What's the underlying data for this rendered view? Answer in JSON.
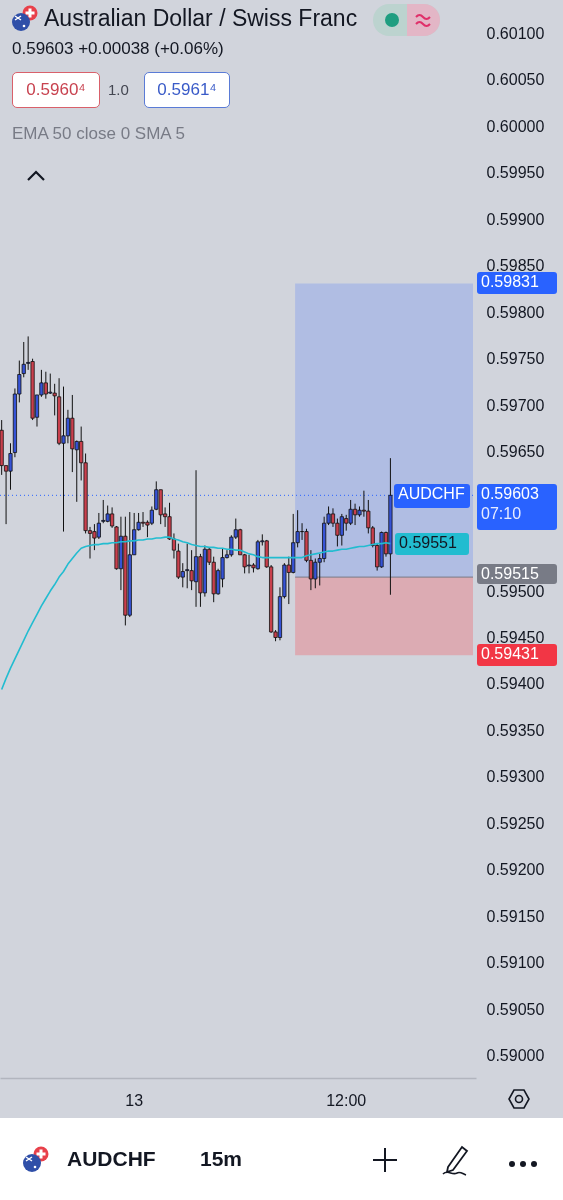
{
  "chart_data": {
    "type": "candlestick",
    "title": "Australian Dollar / Swiss Franc",
    "subtitle": "0.59603 +0.00038 (+0.06%)",
    "categories": [
      null,
      null,
      null,
      null,
      null,
      null,
      null,
      null,
      null,
      null,
      null,
      null,
      null,
      null,
      null,
      null,
      null,
      null,
      null,
      null,
      null,
      null,
      null,
      null,
      null,
      null,
      null,
      null,
      null,
      null,
      "13",
      null,
      null,
      null,
      null,
      null,
      null,
      null,
      null,
      null,
      null,
      null,
      null,
      null,
      null,
      null,
      null,
      null,
      null,
      null,
      null,
      null,
      null,
      null,
      null,
      null,
      null,
      null,
      null,
      null,
      null,
      null,
      null,
      null,
      null,
      null,
      null,
      null,
      null,
      null,
      null,
      null,
      null,
      null,
      null,
      null,
      null,
      null,
      "12:00",
      null,
      null,
      null,
      null,
      null,
      null,
      null,
      null,
      null,
      null
    ],
    "ohlc": [
      [
        0.59673,
        0.59684,
        0.59625,
        0.59635
      ],
      [
        0.59635,
        0.59635,
        0.59572,
        0.59629
      ],
      [
        0.59629,
        0.59659,
        0.59609,
        0.59648
      ],
      [
        0.59649,
        0.59718,
        0.59644,
        0.59712
      ],
      [
        0.59712,
        0.59748,
        0.59703,
        0.59733
      ],
      [
        0.59734,
        0.59768,
        0.5973,
        0.59744
      ],
      [
        0.59745,
        0.59774,
        0.59738,
        0.59746
      ],
      [
        0.59747,
        0.5975,
        0.59684,
        0.59686
      ],
      [
        0.59687,
        0.59711,
        0.59677,
        0.59711
      ],
      [
        0.59711,
        0.59738,
        0.59709,
        0.59724
      ],
      [
        0.59724,
        0.59736,
        0.59707,
        0.59712
      ],
      [
        0.59713,
        0.59734,
        0.59712,
        0.59714
      ],
      [
        0.59713,
        0.59723,
        0.59689,
        0.5971
      ],
      [
        0.59709,
        0.59729,
        0.59657,
        0.59659
      ],
      [
        0.59659,
        0.5972,
        0.59564,
        0.59667
      ],
      [
        0.59667,
        0.59695,
        0.59659,
        0.59686
      ],
      [
        0.59686,
        0.59711,
        0.59628,
        0.59653
      ],
      [
        0.59652,
        0.59662,
        0.59596,
        0.59661
      ],
      [
        0.59661,
        0.59677,
        0.59619,
        0.59638
      ],
      [
        0.59638,
        0.59648,
        0.59562,
        0.59565
      ],
      [
        0.59565,
        0.59569,
        0.59535,
        0.59562
      ],
      [
        0.59564,
        0.59572,
        0.59544,
        0.59557
      ],
      [
        0.59558,
        0.59584,
        0.59556,
        0.59573
      ],
      [
        0.59575,
        0.59598,
        0.59573,
        0.59576
      ],
      [
        0.59575,
        0.59592,
        0.59574,
        0.59583
      ],
      [
        0.59583,
        0.5959,
        0.59568,
        0.5957
      ],
      [
        0.59569,
        0.5957,
        0.59523,
        0.59524
      ],
      [
        0.59524,
        0.5958,
        0.59501,
        0.59559
      ],
      [
        0.59559,
        0.5958,
        0.59463,
        0.59474
      ],
      [
        0.59474,
        0.59585,
        0.59472,
        0.59539
      ],
      [
        0.59539,
        0.59584,
        0.59539,
        0.59566
      ],
      [
        0.59566,
        0.59584,
        0.59565,
        0.59574
      ],
      [
        0.59574,
        0.59585,
        0.59569,
        0.59573
      ],
      [
        0.59574,
        0.59576,
        0.59558,
        0.59571
      ],
      [
        0.59573,
        0.59591,
        0.59571,
        0.59587
      ],
      [
        0.59588,
        0.59618,
        0.59587,
        0.59609
      ],
      [
        0.59609,
        0.59609,
        0.59572,
        0.59582
      ],
      [
        0.59583,
        0.5959,
        0.59569,
        0.5958
      ],
      [
        0.5958,
        0.59595,
        0.59555,
        0.59556
      ],
      [
        0.59556,
        0.59562,
        0.59535,
        0.59544
      ],
      [
        0.59543,
        0.59551,
        0.59513,
        0.59515
      ],
      [
        0.59515,
        0.5953,
        0.59504,
        0.59521
      ],
      [
        0.59522,
        0.59551,
        0.59503,
        0.59523
      ],
      [
        0.59522,
        0.59544,
        0.59501,
        0.59511
      ],
      [
        0.5951,
        0.5963,
        0.59483,
        0.59537
      ],
      [
        0.59537,
        0.5954,
        0.59483,
        0.59498
      ],
      [
        0.59498,
        0.59549,
        0.59494,
        0.59545
      ],
      [
        0.59545,
        0.59547,
        0.59528,
        0.59531
      ],
      [
        0.59531,
        0.59537,
        0.59488,
        0.59497
      ],
      [
        0.59497,
        0.59524,
        0.59496,
        0.59522
      ],
      [
        0.59513,
        0.59546,
        0.59504,
        0.59536
      ],
      [
        0.59536,
        0.59544,
        0.59535,
        0.59539
      ],
      [
        0.59539,
        0.5956,
        0.59537,
        0.59558
      ],
      [
        0.59558,
        0.59578,
        0.59556,
        0.59566
      ],
      [
        0.59566,
        0.59567,
        0.59539,
        0.59539
      ],
      [
        0.59539,
        0.5954,
        0.59519,
        0.59526
      ],
      [
        0.59527,
        0.59539,
        0.59519,
        0.59528
      ],
      [
        0.59528,
        0.5953,
        0.5952,
        0.59525
      ],
      [
        0.59524,
        0.59555,
        0.59523,
        0.59553
      ],
      [
        0.59553,
        0.59561,
        0.59549,
        0.59554
      ],
      [
        0.59554,
        0.59555,
        0.59525,
        0.59526
      ],
      [
        0.59526,
        0.59528,
        0.59455,
        0.59456
      ],
      [
        0.59456,
        0.59458,
        0.59446,
        0.5945
      ],
      [
        0.5945,
        0.59504,
        0.59447,
        0.59494
      ],
      [
        0.59494,
        0.5953,
        0.59492,
        0.59528
      ],
      [
        0.59528,
        0.59537,
        0.59486,
        0.5952
      ],
      [
        0.5952,
        0.59583,
        0.59519,
        0.59552
      ],
      [
        0.59552,
        0.59587,
        0.59547,
        0.59564
      ],
      [
        0.59564,
        0.59573,
        0.59555,
        0.59564
      ],
      [
        0.59564,
        0.59567,
        0.59531,
        0.59533
      ],
      [
        0.59533,
        0.59544,
        0.59501,
        0.59513
      ],
      [
        0.59513,
        0.59535,
        0.59503,
        0.59531
      ],
      [
        0.59531,
        0.5954,
        0.59506,
        0.59535
      ],
      [
        0.59535,
        0.5958,
        0.59531,
        0.59573
      ],
      [
        0.59573,
        0.59591,
        0.59571,
        0.59583
      ],
      [
        0.59583,
        0.59589,
        0.59569,
        0.59573
      ],
      [
        0.59573,
        0.59578,
        0.59548,
        0.5956
      ],
      [
        0.5956,
        0.59583,
        0.59549,
        0.5958
      ],
      [
        0.59578,
        0.59582,
        0.59565,
        0.59573
      ],
      [
        0.59573,
        0.59598,
        0.59571,
        0.59588
      ],
      [
        0.59588,
        0.59594,
        0.59571,
        0.59582
      ],
      [
        0.59582,
        0.59591,
        0.5958,
        0.59587
      ],
      [
        0.59587,
        0.59608,
        0.5958,
        0.59586
      ],
      [
        0.59586,
        0.59598,
        0.59562,
        0.59568
      ],
      [
        0.59568,
        0.5957,
        0.59547,
        0.59549
      ],
      [
        0.59549,
        0.59551,
        0.59522,
        0.59526
      ],
      [
        0.59526,
        0.59564,
        0.59525,
        0.59563
      ],
      [
        0.59563,
        0.59564,
        0.59537,
        0.5954
      ],
      [
        0.5954,
        0.59643,
        0.59496,
        0.59603
      ]
    ],
    "series": [
      {
        "type": "line",
        "color": "#22bcd0",
        "values": [
          0.59394,
          0.59406,
          0.59417,
          0.59427,
          0.59437,
          0.59447,
          0.59457,
          0.59466,
          0.59475,
          0.59484,
          0.59492,
          0.595,
          0.59507,
          0.59515,
          0.59521,
          0.59529,
          0.59535,
          0.59541,
          0.59546,
          0.59548,
          0.59549,
          0.5955,
          0.5955,
          0.59551,
          0.59551,
          0.59552,
          0.59552,
          0.59553,
          0.59553,
          0.59554,
          0.59554,
          0.59555,
          0.59555,
          0.59556,
          0.59556,
          0.59557,
          0.59557,
          0.59558,
          0.59558,
          0.59556,
          0.59555,
          0.59553,
          0.59552,
          0.5955,
          0.59549,
          0.59548,
          0.59548,
          0.59547,
          0.59547,
          0.59546,
          0.59546,
          0.59545,
          0.59545,
          0.59544,
          0.59544,
          0.59542,
          0.5954,
          0.59539,
          0.59537,
          0.59536,
          0.59536,
          0.59536,
          0.59536,
          0.59536,
          0.59536,
          0.59536,
          0.59536,
          0.59536,
          0.59536,
          0.59538,
          0.59539,
          0.5954,
          0.59541,
          0.59542,
          0.59543,
          0.59543,
          0.59544,
          0.59545,
          0.59545,
          0.59546,
          0.59547,
          0.59548,
          0.59548,
          0.59549,
          0.5955,
          0.59551,
          0.59551,
          0.59552,
          0.59551
        ],
        "value_labels": [
          null,
          null,
          null,
          null,
          null,
          null,
          null,
          null,
          null,
          null,
          null,
          null,
          null,
          null,
          null,
          null,
          null,
          null,
          null,
          null,
          null,
          null,
          null,
          null,
          null,
          null,
          null,
          null,
          null,
          null,
          null,
          null,
          null,
          null,
          null,
          null,
          null,
          null,
          null,
          null,
          null,
          null,
          null,
          null,
          null,
          null,
          null,
          null,
          null,
          null,
          null,
          null,
          null,
          null,
          null,
          null,
          null,
          null,
          null,
          null,
          null,
          null,
          null,
          null,
          null,
          null,
          null,
          null,
          null,
          null,
          null,
          null,
          null,
          null,
          null,
          null,
          null,
          null,
          null,
          null,
          null,
          null,
          null,
          null,
          null,
          null,
          null,
          null,
          "0.59551"
        ]
      }
    ],
    "ylim": [
      0.58976,
      0.60136
    ],
    "yticks": [
      {
        "value": 0.59,
        "label": "0.59000"
      },
      {
        "value": 0.5905,
        "label": "0.59050"
      },
      {
        "value": 0.591,
        "label": "0.59100"
      },
      {
        "value": 0.5915,
        "label": "0.59150"
      },
      {
        "value": 0.592,
        "label": "0.59200"
      },
      {
        "value": 0.5925,
        "label": "0.59250"
      },
      {
        "value": 0.593,
        "label": "0.59300"
      },
      {
        "value": 0.5935,
        "label": "0.59350"
      },
      {
        "value": 0.594,
        "label": "0.59400"
      },
      {
        "value": 0.5945,
        "label": "0.59450"
      },
      {
        "value": 0.595,
        "label": "0.59500"
      },
      {
        "value": 0.5965,
        "label": "0.59650"
      },
      {
        "value": 0.597,
        "label": "0.59700"
      },
      {
        "value": 0.5975,
        "label": "0.59750"
      },
      {
        "value": 0.598,
        "label": "0.59800"
      },
      {
        "value": 0.5985,
        "label": "0.59850"
      },
      {
        "value": 0.599,
        "label": "0.59900"
      },
      {
        "value": 0.5995,
        "label": "0.59950"
      },
      {
        "value": 0.6,
        "label": "0.60000"
      },
      {
        "value": 0.6005,
        "label": "0.60050"
      },
      {
        "value": 0.601,
        "label": "0.60100"
      }
    ],
    "ref_lines": [
      {
        "axis": "y",
        "value": 0.59603,
        "label": "0.59603",
        "line_style": "dotted",
        "color": "#2962ff"
      },
      {
        "axis": "y",
        "value": 0.59515,
        "label": "0.59515",
        "color": "#787b86"
      }
    ],
    "bands": [
      {
        "axis": "y",
        "from": 0.59515,
        "to": 0.59831,
        "label": "0.59831",
        "color": "#b0bde3"
      },
      {
        "axis": "y",
        "from": 0.59431,
        "to": 0.59515,
        "label": "0.59431",
        "color": "#dcabb3"
      }
    ],
    "annotations": [
      "0.5960⁴",
      "1.0",
      "0.5961⁴",
      "EMA 50 close 0 SMA 5",
      "AUDCHF",
      "07:10",
      "AUDCHF",
      "15m"
    ]
  }
}
